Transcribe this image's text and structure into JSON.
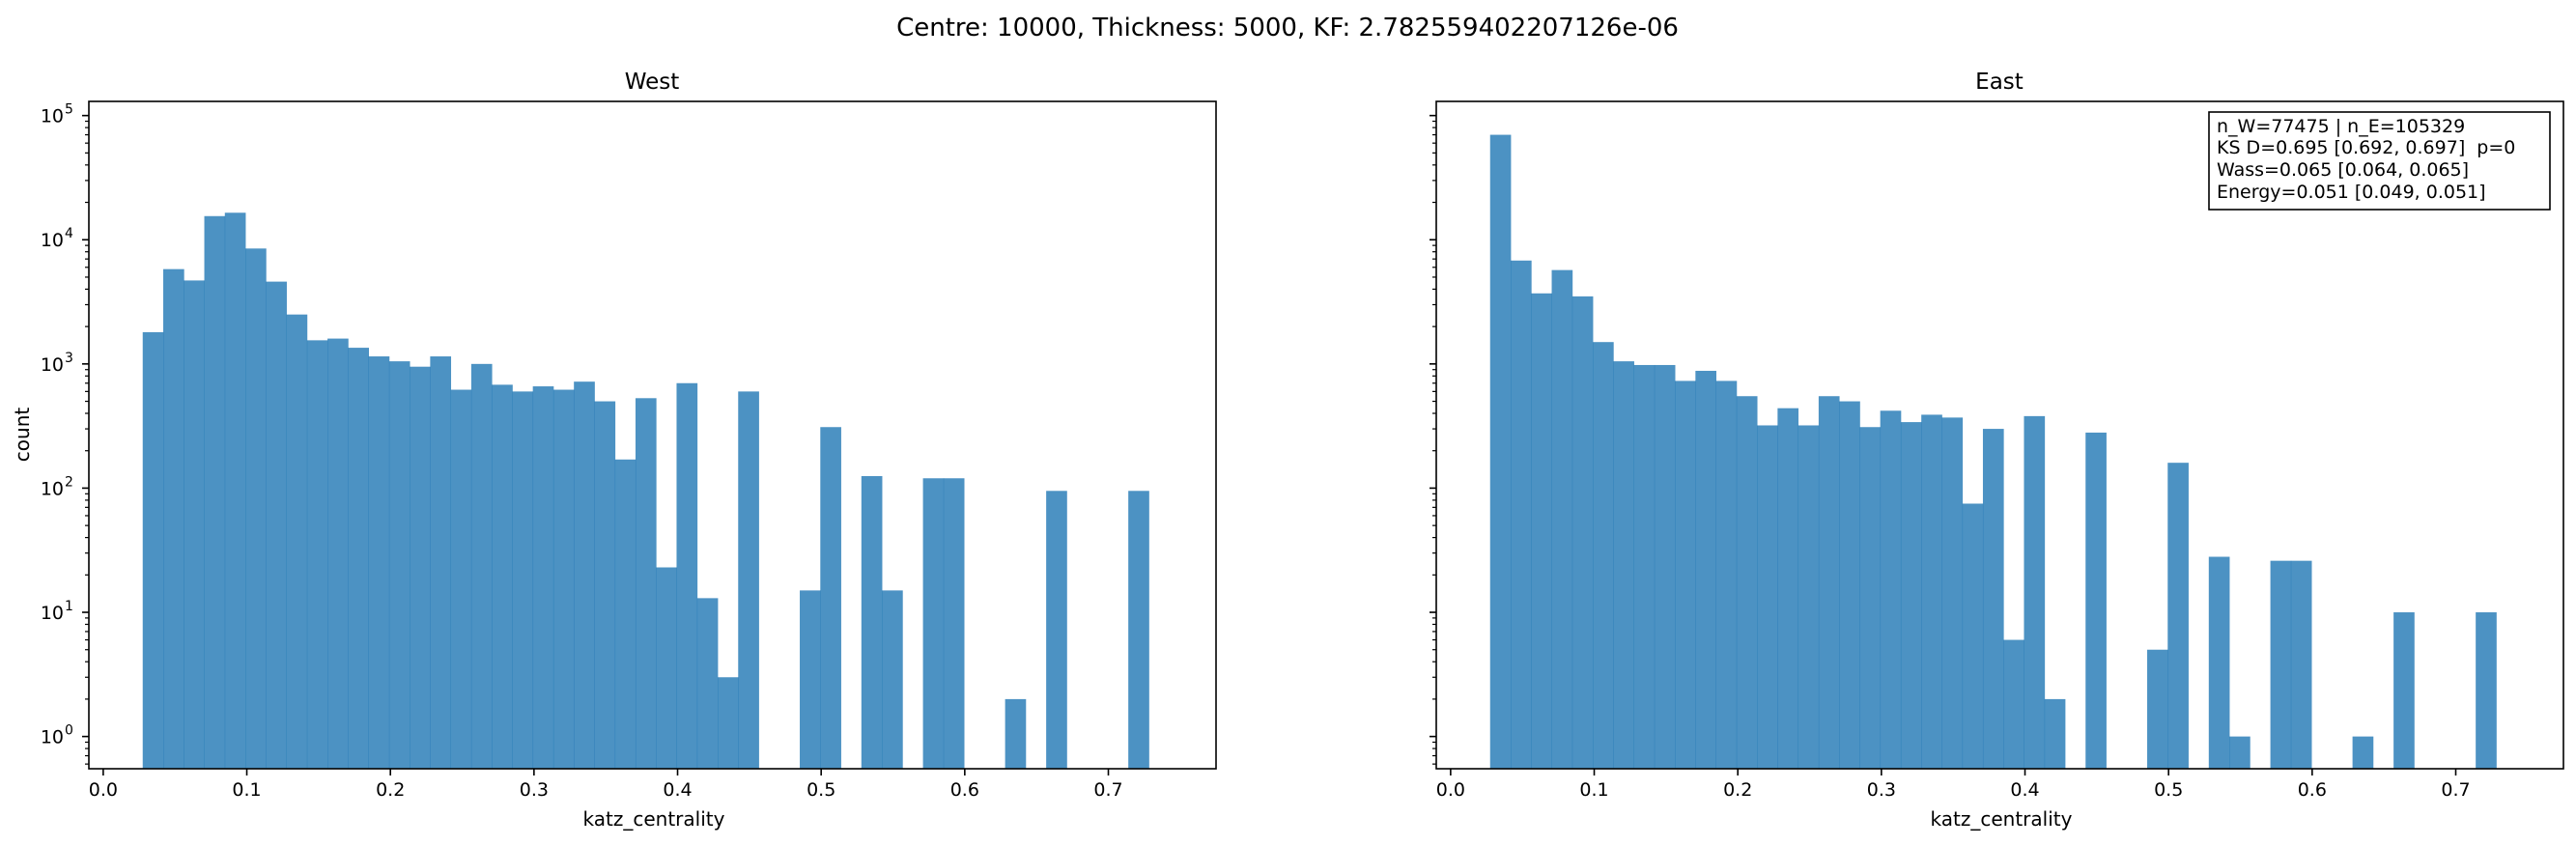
{
  "figure": {
    "suptitle": "Centre: 10000, Thickness: 5000, KF: 2.782559402207126e-06"
  },
  "colors": {
    "bar": "#1f77b4",
    "bar_alpha": 0.8
  },
  "chart_data": [
    {
      "type": "bar",
      "title": "West",
      "xlabel": "katz_centrality",
      "ylabel": "count",
      "yscale": "log",
      "ylim": [
        0.55,
        130000
      ],
      "xlim": [
        -0.01,
        0.775
      ],
      "xticks": [
        0.0,
        0.1,
        0.2,
        0.3,
        0.4,
        0.5,
        0.6,
        0.7
      ],
      "xtick_labels": [
        "0.0",
        "0.1",
        "0.2",
        "0.3",
        "0.4",
        "0.5",
        "0.6",
        "0.7"
      ],
      "yticks": [
        1,
        10,
        100,
        1000,
        10000,
        100000
      ],
      "ytick_labels": [
        [
          "10",
          "0"
        ],
        [
          "10",
          "1"
        ],
        [
          "10",
          "2"
        ],
        [
          "10",
          "3"
        ],
        [
          "10",
          "4"
        ],
        [
          "10",
          "5"
        ]
      ],
      "bin_start": 0.0275,
      "bin_width": 0.0143,
      "values": [
        1800,
        5800,
        4700,
        15500,
        16500,
        8500,
        4600,
        2500,
        1550,
        1600,
        1350,
        1150,
        1050,
        950,
        1150,
        620,
        1000,
        680,
        600,
        660,
        620,
        720,
        500,
        170,
        530,
        23,
        700,
        13,
        3,
        600,
        0,
        0,
        15,
        310,
        0,
        125,
        15,
        0,
        120,
        120,
        0,
        0,
        2,
        0,
        95,
        0,
        0,
        0,
        95
      ]
    },
    {
      "type": "bar",
      "title": "East",
      "xlabel": "katz_centrality",
      "ylabel": "",
      "yscale": "log",
      "ylim": [
        0.55,
        130000
      ],
      "xlim": [
        -0.01,
        0.775
      ],
      "xticks": [
        0.0,
        0.1,
        0.2,
        0.3,
        0.4,
        0.5,
        0.6,
        0.7
      ],
      "xtick_labels": [
        "0.0",
        "0.1",
        "0.2",
        "0.3",
        "0.4",
        "0.5",
        "0.6",
        "0.7"
      ],
      "yticks": [
        1,
        10,
        100,
        1000,
        10000,
        100000
      ],
      "bin_start": 0.0275,
      "bin_width": 0.0143,
      "values": [
        70000,
        6800,
        3700,
        5700,
        3500,
        1500,
        1050,
        980,
        980,
        730,
        880,
        730,
        550,
        320,
        440,
        320,
        550,
        500,
        310,
        420,
        340,
        390,
        370,
        75,
        300,
        6,
        380,
        2,
        0,
        280,
        0,
        0,
        5,
        160,
        0,
        28,
        1,
        0,
        26,
        26,
        0,
        0,
        1,
        0,
        10,
        0,
        0,
        0,
        10
      ],
      "stats_box": [
        "n_W=77475 | n_E=105329",
        "KS D=0.695 [0.692, 0.697]  p=0",
        "Wass=0.065 [0.064, 0.065]",
        "Energy=0.051 [0.049, 0.051]"
      ]
    }
  ]
}
